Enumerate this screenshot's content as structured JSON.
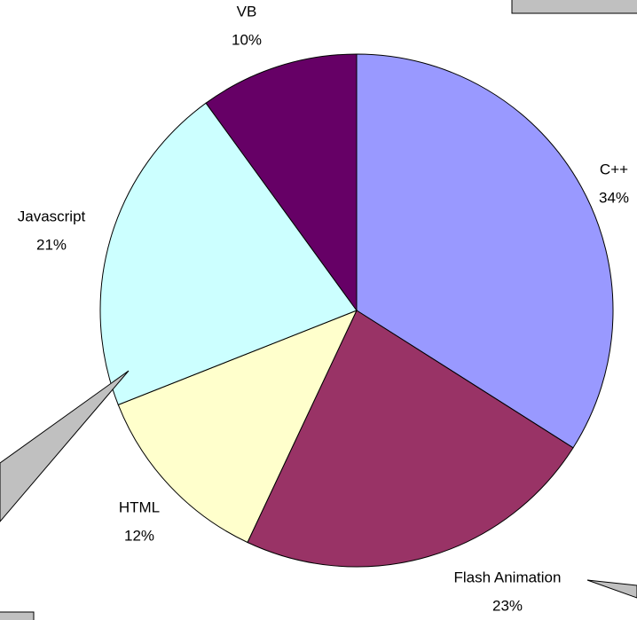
{
  "chart_data": {
    "type": "pie",
    "categories": [
      "C++",
      "Flash Animation",
      "HTML",
      "Javascript",
      "VB"
    ],
    "values": [
      34,
      23,
      12,
      21,
      10
    ],
    "value_labels": [
      "34%",
      "23%",
      "12%",
      "21%",
      "10%"
    ],
    "colors": [
      "#9999ff",
      "#993366",
      "#ffffcc",
      "#ccffff",
      "#660066"
    ]
  }
}
